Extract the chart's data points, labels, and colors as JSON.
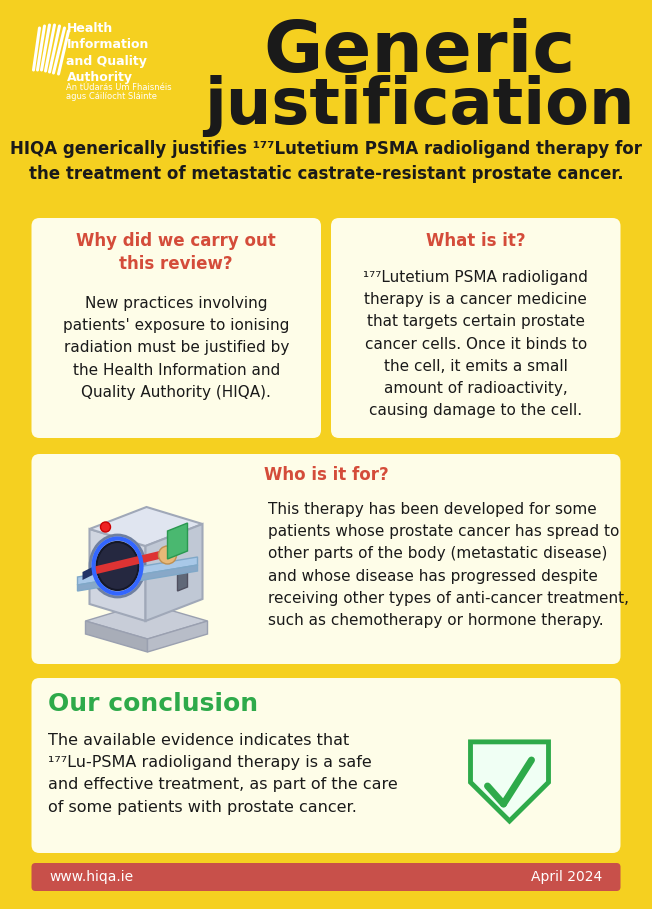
{
  "bg_color": "#F5D020",
  "title_line1": "Generic",
  "title_line2": "justification",
  "logo_lines": [
    "Health",
    "Information",
    "and Quality",
    "Authority"
  ],
  "logo_sub1": "An tÚdarás Um Fhaisnéis",
  "logo_sub2": "agus Cáilíocht Sláinte",
  "subtitle": "HIQA generically justifies ¹⁷⁷Lutetium PSMA radioligand therapy for\nthe treatment of metastatic castrate-resistant prostate cancer.",
  "box1_title": "Why did we carry out\nthis review?",
  "box1_body": "New practices involving\npatients' exposure to ionising\nradiation must be justified by\nthe Health Information and\nQuality Authority (HIQA).",
  "box2_title": "What is it?",
  "box2_body": "¹⁷⁷Lutetium PSMA radioligand\ntherapy is a cancer medicine\nthat targets certain prostate\ncancer cells. Once it binds to\nthe cell, it emits a small\namount of radioactivity,\ncausing damage to the cell.",
  "box3_title": "Who is it for?",
  "box3_body": "This therapy has been developed for some\npatients whose prostate cancer has spread to\nother parts of the body (metastatic disease)\nand whose disease has progressed despite\nreceiving other types of anti-cancer treatment,\nsuch as chemotherapy or hormone therapy.",
  "box4_title": "Our conclusion",
  "box4_body": "The available evidence indicates that\n¹⁷⁷Lu-PSMA radioligand therapy is a safe\nand effective treatment, as part of the care\nof some patients with prostate cancer.",
  "footer_left": "www.hiqa.ie",
  "footer_right": "April 2024",
  "footer_bg": "#C8504A",
  "card_bg": "#FEFDE8",
  "title_color": "#1a1a1a",
  "red_title_color": "#D44C3A",
  "body_color": "#1a1a1a",
  "green_color": "#2EAA4A",
  "white": "#FFFFFF",
  "yellow": "#F5D020"
}
